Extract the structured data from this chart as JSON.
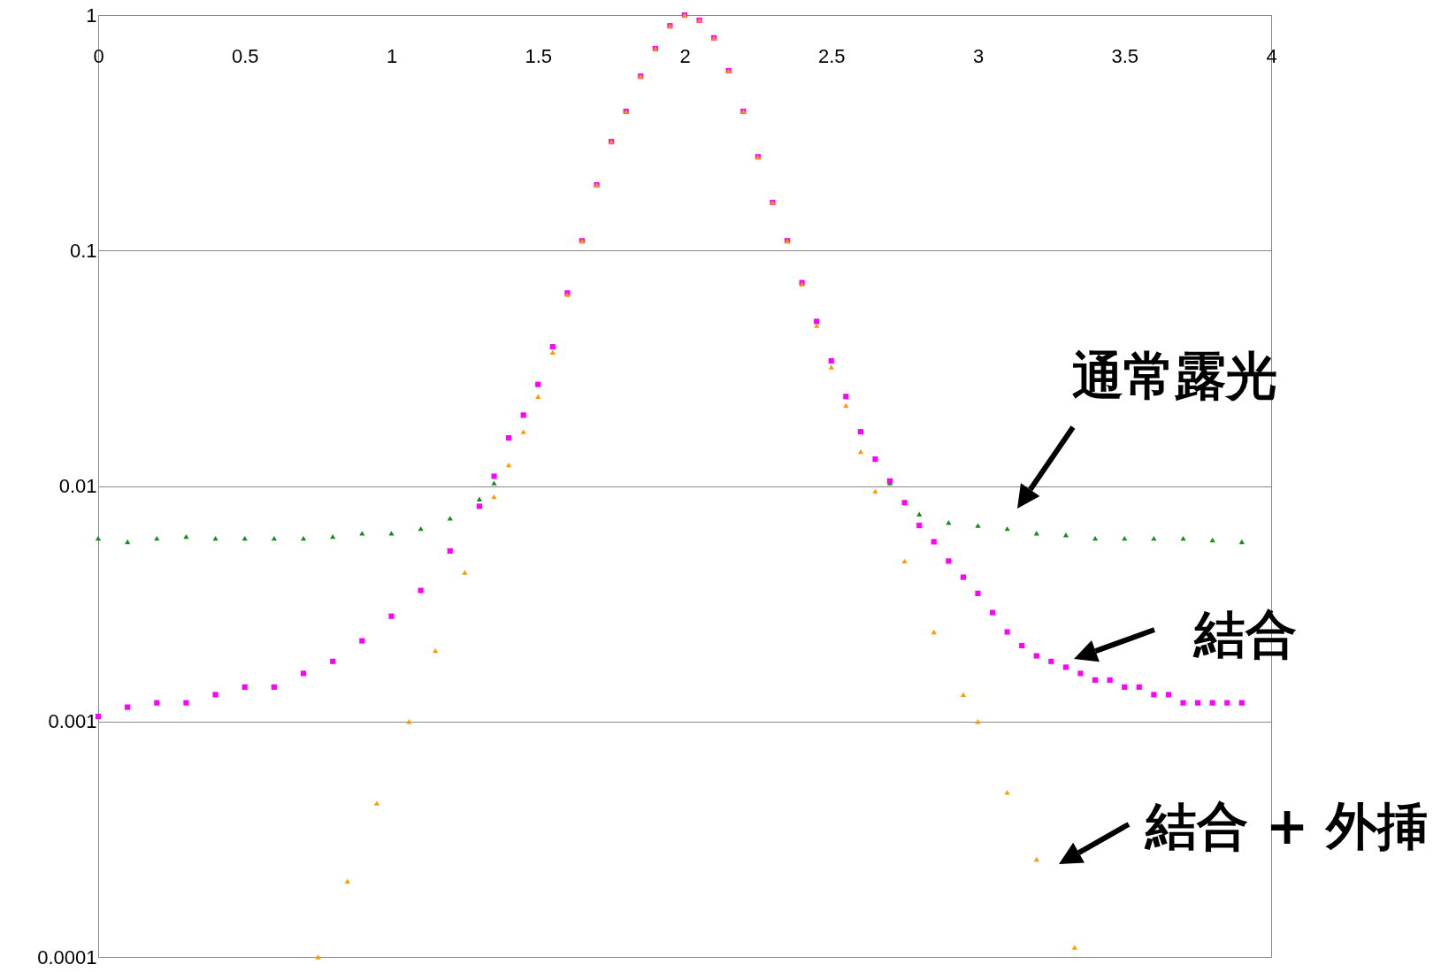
{
  "chart_data": {
    "type": "scatter",
    "log": "y",
    "grid": "y",
    "xlim": [
      0,
      4
    ],
    "xticks": [
      0,
      0.5,
      1,
      1.5,
      2,
      2.5,
      3,
      3.5,
      4
    ],
    "ylim": [
      0.0001,
      1
    ],
    "yticks": [
      0.0001,
      0.001,
      0.01,
      0.1,
      1
    ],
    "series": [
      {
        "name": "通常露光",
        "color": "#1a8a1a",
        "marker": "triangle",
        "x": [
          0,
          0.1,
          0.2,
          0.3,
          0.4,
          0.5,
          0.6,
          0.7,
          0.8,
          0.9,
          1.0,
          1.1,
          1.2,
          1.3,
          1.35,
          2.7,
          2.8,
          2.9,
          3.0,
          3.1,
          3.2,
          3.3,
          3.4,
          3.5,
          3.6,
          3.7,
          3.8,
          3.9
        ],
        "values": [
          0.006,
          0.0058,
          0.006,
          0.0061,
          0.006,
          0.006,
          0.006,
          0.006,
          0.0061,
          0.0063,
          0.0063,
          0.0066,
          0.0073,
          0.0088,
          0.0103,
          0.0103,
          0.0076,
          0.007,
          0.0068,
          0.0066,
          0.0063,
          0.0062,
          0.006,
          0.006,
          0.006,
          0.006,
          0.0059,
          0.0058
        ]
      },
      {
        "name": "結合",
        "color": "#ff00ff",
        "marker": "square",
        "x": [
          0,
          0.1,
          0.2,
          0.3,
          0.4,
          0.5,
          0.6,
          0.7,
          0.8,
          0.9,
          1.0,
          1.1,
          1.2,
          1.3,
          1.35,
          1.4,
          1.45,
          1.5,
          1.55,
          1.6,
          1.65,
          1.7,
          1.75,
          1.8,
          1.85,
          1.9,
          1.95,
          2.0,
          2.05,
          2.1,
          2.15,
          2.2,
          2.25,
          2.3,
          2.35,
          2.4,
          2.45,
          2.5,
          2.55,
          2.6,
          2.65,
          2.7,
          2.75,
          2.8,
          2.85,
          2.9,
          2.95,
          3.0,
          3.05,
          3.1,
          3.15,
          3.2,
          3.25,
          3.3,
          3.35,
          3.4,
          3.45,
          3.5,
          3.55,
          3.6,
          3.65,
          3.7,
          3.75,
          3.8,
          3.85,
          3.9
        ],
        "values": [
          0.00105,
          0.00115,
          0.0012,
          0.0012,
          0.0013,
          0.0014,
          0.0014,
          0.0016,
          0.0018,
          0.0022,
          0.0028,
          0.0036,
          0.0053,
          0.0082,
          0.011,
          0.016,
          0.02,
          0.027,
          0.039,
          0.066,
          0.11,
          0.19,
          0.29,
          0.39,
          0.55,
          0.72,
          0.9,
          1.0,
          0.95,
          0.8,
          0.58,
          0.39,
          0.25,
          0.16,
          0.11,
          0.073,
          0.05,
          0.034,
          0.024,
          0.017,
          0.013,
          0.0105,
          0.0085,
          0.0068,
          0.0058,
          0.0048,
          0.0041,
          0.0035,
          0.0029,
          0.0024,
          0.0021,
          0.0019,
          0.0018,
          0.0017,
          0.0016,
          0.0015,
          0.0015,
          0.0014,
          0.0014,
          0.0013,
          0.0013,
          0.0012,
          0.0012,
          0.0012,
          0.0012,
          0.0012
        ]
      },
      {
        "name": "結合 + 外挿",
        "color": "#ff9900",
        "marker": "triangle",
        "x": [
          0.75,
          0.85,
          0.95,
          1.06,
          1.15,
          1.25,
          1.35,
          1.4,
          1.45,
          1.5,
          1.55,
          1.6,
          1.65,
          1.7,
          1.75,
          1.8,
          1.85,
          1.9,
          1.95,
          2.0,
          2.05,
          2.1,
          2.15,
          2.2,
          2.25,
          2.3,
          2.35,
          2.4,
          2.45,
          2.5,
          2.55,
          2.6,
          2.65,
          2.75,
          2.85,
          2.95,
          3.0,
          3.1,
          3.2,
          3.33
        ],
        "values": [
          0.0001,
          0.00021,
          0.00045,
          0.001,
          0.002,
          0.0043,
          0.009,
          0.0123,
          0.017,
          0.024,
          0.037,
          0.065,
          0.11,
          0.19,
          0.29,
          0.39,
          0.55,
          0.72,
          0.9,
          1.0,
          0.95,
          0.8,
          0.58,
          0.39,
          0.25,
          0.16,
          0.11,
          0.072,
          0.048,
          0.032,
          0.022,
          0.014,
          0.0095,
          0.0048,
          0.0024,
          0.0013,
          0.001,
          0.0005,
          0.00026,
          0.00011
        ]
      }
    ]
  }
}
